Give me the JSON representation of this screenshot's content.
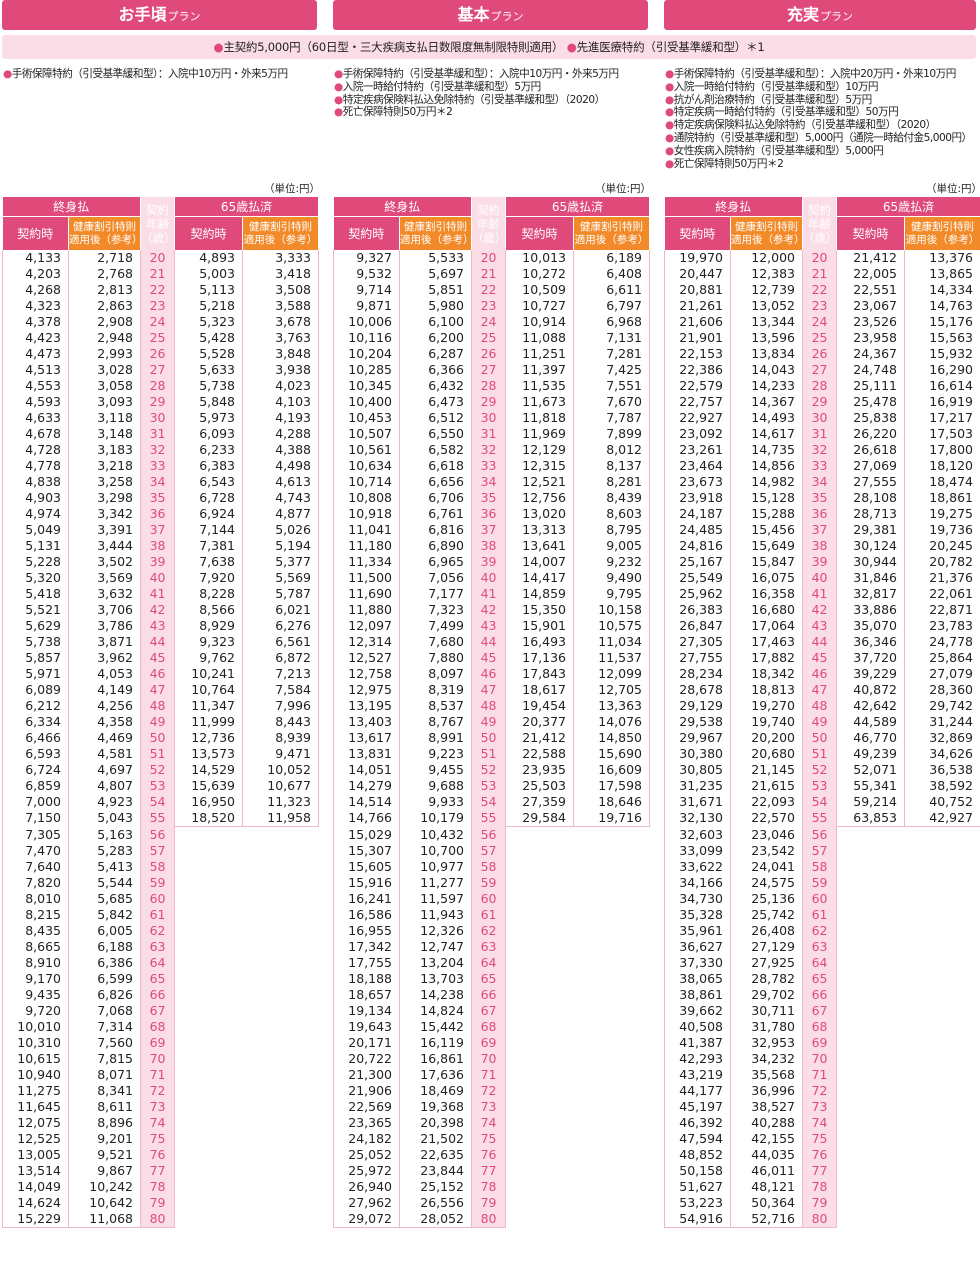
{
  "plans": [
    {
      "name": "お手頃",
      "suffix": "プラン",
      "benefits": [
        "手術保障特約（引受基準緩和型）：入院中10万円・外来5万円"
      ]
    },
    {
      "name": "基本",
      "suffix": "プラン",
      "benefits": [
        "手術保障特約（引受基準緩和型）：入院中10万円・外来5万円",
        "入院一時給付特約（引受基準緩和型）5万円",
        "特定疾病保険料払込免除特約（引受基準緩和型）（2020）",
        "死亡保障特則50万円＊2"
      ]
    },
    {
      "name": "充実",
      "suffix": "プラン",
      "benefits": [
        "手術保障特約（引受基準緩和型）：入院中20万円・外来10万円",
        "入院一時給付特約（引受基準緩和型）10万円",
        "抗がん剤治療特約（引受基準緩和型）5万円",
        "特定疾病一時給付特約（引受基準緩和型）50万円",
        "特定疾病保険料払込免除特約（引受基準緩和型）（2020）",
        "通院特約（引受基準緩和型）5,000円（通院一時給付金5,000円）",
        "女性疾病入院特約（引受基準緩和型）5,000円",
        "死亡保障特則50万円＊2"
      ]
    }
  ],
  "common": {
    "main": "主契約5,000円（60日型・三大疾病支払日数限度無制限特則適用）",
    "rider": "先進医療特約（引受基準緩和型）＊1"
  },
  "unit": "（単位:円）",
  "headers": {
    "lifetime": "終身払",
    "to65": "65歳払済",
    "contract": "契約時",
    "kenko": [
      "健康割引特則",
      "適用後（参考）"
    ],
    "age": [
      "契約",
      "年齢",
      "（歳）"
    ]
  },
  "ages": [
    20,
    21,
    22,
    23,
    24,
    25,
    26,
    27,
    28,
    29,
    30,
    31,
    32,
    33,
    34,
    35,
    36,
    37,
    38,
    39,
    40,
    41,
    42,
    43,
    44,
    45,
    46,
    47,
    48,
    49,
    50,
    51,
    52,
    53,
    54,
    55,
    56,
    57,
    58,
    59,
    60,
    61,
    62,
    63,
    64,
    65,
    66,
    67,
    68,
    69,
    70,
    71,
    72,
    73,
    74,
    75,
    76,
    77,
    78,
    79,
    80
  ],
  "rates": {
    "otegoro": {
      "life_contract": [
        "4,133",
        "4,203",
        "4,268",
        "4,323",
        "4,378",
        "4,423",
        "4,473",
        "4,513",
        "4,553",
        "4,593",
        "4,633",
        "4,678",
        "4,728",
        "4,778",
        "4,838",
        "4,903",
        "4,974",
        "5,049",
        "5,131",
        "5,228",
        "5,320",
        "5,418",
        "5,521",
        "5,629",
        "5,738",
        "5,857",
        "5,971",
        "6,089",
        "6,212",
        "6,334",
        "6,466",
        "6,593",
        "6,724",
        "6,859",
        "7,000",
        "7,150",
        "7,305",
        "7,470",
        "7,640",
        "7,820",
        "8,010",
        "8,215",
        "8,435",
        "8,665",
        "8,910",
        "9,170",
        "9,435",
        "9,720",
        "10,010",
        "10,310",
        "10,615",
        "10,940",
        "11,275",
        "11,645",
        "12,075",
        "12,525",
        "13,005",
        "13,514",
        "14,049",
        "14,624",
        "15,229"
      ],
      "life_kenko": [
        "2,718",
        "2,768",
        "2,813",
        "2,863",
        "2,908",
        "2,948",
        "2,993",
        "3,028",
        "3,058",
        "3,093",
        "3,118",
        "3,148",
        "3,183",
        "3,218",
        "3,258",
        "3,298",
        "3,342",
        "3,391",
        "3,444",
        "3,502",
        "3,569",
        "3,632",
        "3,706",
        "3,786",
        "3,871",
        "3,962",
        "4,053",
        "4,149",
        "4,256",
        "4,358",
        "4,469",
        "4,581",
        "4,697",
        "4,807",
        "4,923",
        "5,043",
        "5,163",
        "5,283",
        "5,413",
        "5,544",
        "5,685",
        "5,842",
        "6,005",
        "6,188",
        "6,386",
        "6,599",
        "6,826",
        "7,068",
        "7,314",
        "7,560",
        "7,815",
        "8,071",
        "8,341",
        "8,611",
        "8,896",
        "9,201",
        "9,521",
        "9,867",
        "10,242",
        "10,642",
        "11,068"
      ],
      "p65_contract": [
        "4,893",
        "5,003",
        "5,113",
        "5,218",
        "5,323",
        "5,428",
        "5,528",
        "5,633",
        "5,738",
        "5,848",
        "5,973",
        "6,093",
        "6,233",
        "6,383",
        "6,543",
        "6,728",
        "6,924",
        "7,144",
        "7,381",
        "7,638",
        "7,920",
        "8,228",
        "8,566",
        "8,929",
        "9,323",
        "9,762",
        "10,241",
        "10,764",
        "11,347",
        "11,999",
        "12,736",
        "13,573",
        "14,529",
        "15,639",
        "16,950",
        "18,520"
      ],
      "p65_kenko": [
        "3,333",
        "3,418",
        "3,508",
        "3,588",
        "3,678",
        "3,763",
        "3,848",
        "3,938",
        "4,023",
        "4,103",
        "4,193",
        "4,288",
        "4,388",
        "4,498",
        "4,613",
        "4,743",
        "4,877",
        "5,026",
        "5,194",
        "5,377",
        "5,569",
        "5,787",
        "6,021",
        "6,276",
        "6,561",
        "6,872",
        "7,213",
        "7,584",
        "7,996",
        "8,443",
        "8,939",
        "9,471",
        "10,052",
        "10,677",
        "11,323",
        "11,958"
      ]
    },
    "kihon": {
      "life_contract": [
        "9,327",
        "9,532",
        "9,714",
        "9,871",
        "10,006",
        "10,116",
        "10,204",
        "10,285",
        "10,345",
        "10,400",
        "10,453",
        "10,507",
        "10,561",
        "10,634",
        "10,714",
        "10,808",
        "10,918",
        "11,041",
        "11,180",
        "11,334",
        "11,500",
        "11,690",
        "11,880",
        "12,097",
        "12,314",
        "12,527",
        "12,758",
        "12,975",
        "13,195",
        "13,403",
        "13,617",
        "13,831",
        "14,051",
        "14,279",
        "14,514",
        "14,766",
        "15,029",
        "15,307",
        "15,605",
        "15,916",
        "16,241",
        "16,586",
        "16,955",
        "17,342",
        "17,755",
        "18,188",
        "18,657",
        "19,134",
        "19,643",
        "20,171",
        "20,722",
        "21,300",
        "21,906",
        "22,569",
        "23,365",
        "24,182",
        "25,052",
        "25,972",
        "26,940",
        "27,962",
        "29,072"
      ],
      "life_kenko": [
        "5,533",
        "5,697",
        "5,851",
        "5,980",
        "6,100",
        "6,200",
        "6,287",
        "6,366",
        "6,432",
        "6,473",
        "6,512",
        "6,550",
        "6,582",
        "6,618",
        "6,656",
        "6,706",
        "6,761",
        "6,816",
        "6,890",
        "6,965",
        "7,056",
        "7,177",
        "7,323",
        "7,499",
        "7,680",
        "7,880",
        "8,097",
        "8,319",
        "8,537",
        "8,767",
        "8,991",
        "9,223",
        "9,455",
        "9,688",
        "9,933",
        "10,179",
        "10,432",
        "10,700",
        "10,977",
        "11,277",
        "11,597",
        "11,943",
        "12,326",
        "12,747",
        "13,204",
        "13,703",
        "14,238",
        "14,824",
        "15,442",
        "16,119",
        "16,861",
        "17,636",
        "18,469",
        "19,368",
        "20,398",
        "21,502",
        "22,635",
        "23,844",
        "25,152",
        "26,556",
        "28,052"
      ],
      "p65_contract": [
        "10,013",
        "10,272",
        "10,509",
        "10,727",
        "10,914",
        "11,088",
        "11,251",
        "11,397",
        "11,535",
        "11,673",
        "11,818",
        "11,969",
        "12,129",
        "12,315",
        "12,521",
        "12,756",
        "13,020",
        "13,313",
        "13,641",
        "14,007",
        "14,417",
        "14,859",
        "15,350",
        "15,901",
        "16,493",
        "17,136",
        "17,843",
        "18,617",
        "19,454",
        "20,377",
        "21,412",
        "22,588",
        "23,935",
        "25,503",
        "27,359",
        "29,584"
      ],
      "p65_kenko": [
        "6,189",
        "6,408",
        "6,611",
        "6,797",
        "6,968",
        "7,131",
        "7,281",
        "7,425",
        "7,551",
        "7,670",
        "7,787",
        "7,899",
        "8,012",
        "8,137",
        "8,281",
        "8,439",
        "8,603",
        "8,795",
        "9,005",
        "9,232",
        "9,490",
        "9,795",
        "10,158",
        "10,575",
        "11,034",
        "11,537",
        "12,099",
        "12,705",
        "13,363",
        "14,076",
        "14,850",
        "15,690",
        "16,609",
        "17,598",
        "18,646",
        "19,716"
      ]
    },
    "juujitsu": {
      "life_contract": [
        "19,970",
        "20,447",
        "20,881",
        "21,261",
        "21,606",
        "21,901",
        "22,153",
        "22,386",
        "22,579",
        "22,757",
        "22,927",
        "23,092",
        "23,261",
        "23,464",
        "23,673",
        "23,918",
        "24,187",
        "24,485",
        "24,816",
        "25,167",
        "25,549",
        "25,962",
        "26,383",
        "26,847",
        "27,305",
        "27,755",
        "28,234",
        "28,678",
        "29,129",
        "29,538",
        "29,967",
        "30,380",
        "30,805",
        "31,235",
        "31,671",
        "32,130",
        "32,603",
        "33,099",
        "33,622",
        "34,166",
        "34,730",
        "35,328",
        "35,961",
        "36,627",
        "37,330",
        "38,065",
        "38,861",
        "39,662",
        "40,508",
        "41,387",
        "42,293",
        "43,219",
        "44,177",
        "45,197",
        "46,392",
        "47,594",
        "48,852",
        "50,158",
        "51,627",
        "53,223",
        "54,916"
      ],
      "life_kenko": [
        "12,000",
        "12,383",
        "12,739",
        "13,052",
        "13,344",
        "13,596",
        "13,834",
        "14,043",
        "14,233",
        "14,367",
        "14,493",
        "14,617",
        "14,735",
        "14,856",
        "14,982",
        "15,128",
        "15,288",
        "15,456",
        "15,649",
        "15,847",
        "16,075",
        "16,358",
        "16,680",
        "17,064",
        "17,463",
        "17,882",
        "18,342",
        "18,813",
        "19,270",
        "19,740",
        "20,200",
        "20,680",
        "21,145",
        "21,615",
        "22,093",
        "22,570",
        "23,046",
        "23,542",
        "24,041",
        "24,575",
        "25,136",
        "25,742",
        "26,408",
        "27,129",
        "27,925",
        "28,782",
        "29,702",
        "30,711",
        "31,780",
        "32,953",
        "34,232",
        "35,568",
        "36,996",
        "38,527",
        "40,288",
        "42,155",
        "44,035",
        "46,011",
        "48,121",
        "50,364",
        "52,716"
      ],
      "p65_contract": [
        "21,412",
        "22,005",
        "22,551",
        "23,067",
        "23,526",
        "23,958",
        "24,367",
        "24,748",
        "25,111",
        "25,478",
        "25,838",
        "26,220",
        "26,618",
        "27,069",
        "27,555",
        "28,108",
        "28,713",
        "29,381",
        "30,124",
        "30,944",
        "31,846",
        "32,817",
        "33,886",
        "35,070",
        "36,346",
        "37,720",
        "39,229",
        "40,872",
        "42,642",
        "44,589",
        "46,770",
        "49,239",
        "52,071",
        "55,341",
        "59,214",
        "63,853"
      ],
      "p65_kenko": [
        "13,376",
        "13,865",
        "14,334",
        "14,763",
        "15,176",
        "15,563",
        "15,932",
        "16,290",
        "16,614",
        "16,919",
        "17,217",
        "17,503",
        "17,800",
        "18,120",
        "18,474",
        "18,861",
        "19,275",
        "19,736",
        "20,245",
        "20,782",
        "21,376",
        "22,061",
        "22,871",
        "23,783",
        "24,778",
        "25,864",
        "27,079",
        "28,360",
        "29,742",
        "31,244",
        "32,869",
        "34,626",
        "36,538",
        "38,592",
        "40,752",
        "42,927"
      ]
    }
  }
}
